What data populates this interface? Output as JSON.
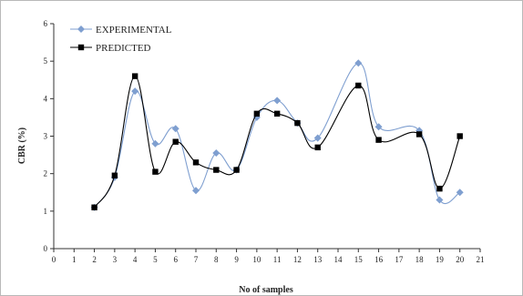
{
  "chart_data": {
    "type": "line",
    "title": "",
    "xlabel": "No of samples",
    "ylabel": "CBR (%)",
    "xlim": [
      0,
      21
    ],
    "ylim": [
      0,
      6
    ],
    "x_ticks": [
      0,
      1,
      2,
      3,
      4,
      5,
      6,
      7,
      8,
      9,
      10,
      11,
      12,
      13,
      14,
      15,
      16,
      17,
      18,
      19,
      20,
      21
    ],
    "y_ticks": [
      0,
      1,
      2,
      3,
      4,
      5,
      6
    ],
    "grid": false,
    "legend_position": "top-left",
    "smoothed": true,
    "series": [
      {
        "name": "EXPERIMENTAL",
        "color": "#7f9fd0",
        "marker": "diamond",
        "x": [
          2,
          3,
          4,
          5,
          6,
          7,
          8,
          9,
          10,
          11,
          12,
          13,
          15,
          16,
          18,
          19,
          20
        ],
        "y": [
          1.1,
          1.9,
          4.2,
          2.8,
          3.2,
          1.55,
          2.55,
          2.1,
          3.5,
          3.95,
          3.35,
          2.95,
          4.95,
          3.25,
          3.15,
          1.3,
          1.5
        ]
      },
      {
        "name": "PREDICTED",
        "color": "#000000",
        "marker": "square",
        "x": [
          2,
          3,
          4,
          5,
          6,
          7,
          8,
          9,
          10,
          11,
          12,
          13,
          15,
          16,
          18,
          19,
          20
        ],
        "y": [
          1.1,
          1.95,
          4.6,
          2.05,
          2.85,
          2.3,
          2.1,
          2.1,
          3.6,
          3.6,
          3.35,
          2.7,
          4.35,
          2.9,
          3.05,
          1.6,
          3.0
        ]
      }
    ]
  }
}
